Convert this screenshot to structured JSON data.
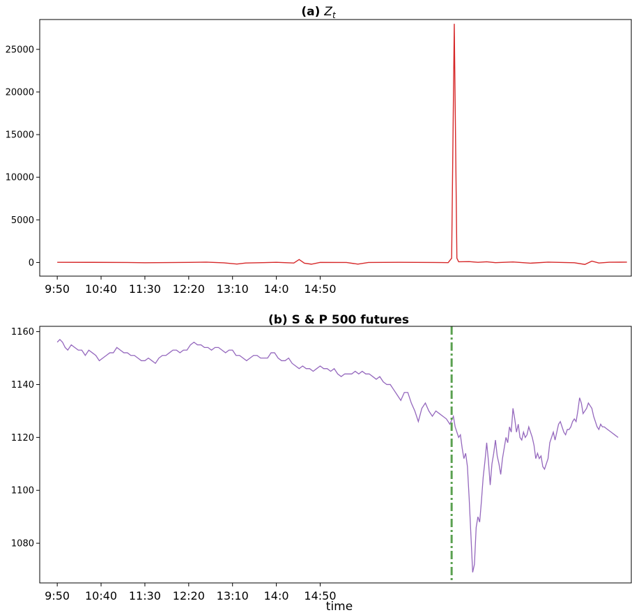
{
  "chart_data": [
    {
      "type": "line",
      "title_prefix": "(a)",
      "title_symbol": "Z",
      "title_subscript": "t",
      "xlabel": "",
      "ylabel": "",
      "x_unit": "minutes after 9:50",
      "xlim": [
        -20,
        655
      ],
      "ylim": [
        -1600,
        28500
      ],
      "yticks": [
        0,
        5000,
        10000,
        15000,
        20000,
        25000
      ],
      "xticks": [
        "9:50",
        "10:40",
        "11:30",
        "12:20",
        "13:10",
        "14:0",
        "14:50"
      ],
      "line_color": "#d62728",
      "series": [
        {
          "points": [
            [
              0,
              20
            ],
            [
              40,
              15
            ],
            [
              80,
              0
            ],
            [
              100,
              -30
            ],
            [
              150,
              10
            ],
            [
              170,
              40
            ],
            [
              190,
              -40
            ],
            [
              205,
              -180
            ],
            [
              215,
              -60
            ],
            [
              250,
              20
            ],
            [
              260,
              -20
            ],
            [
              270,
              -60
            ],
            [
              276,
              350
            ],
            [
              282,
              -80
            ],
            [
              290,
              -200
            ],
            [
              300,
              10
            ],
            [
              330,
              0
            ],
            [
              343,
              -190
            ],
            [
              355,
              0
            ],
            [
              390,
              20
            ],
            [
              430,
              0
            ],
            [
              446,
              -20
            ],
            [
              450,
              500
            ],
            [
              453,
              28000
            ],
            [
              456,
              500
            ],
            [
              458,
              80
            ],
            [
              470,
              100
            ],
            [
              480,
              20
            ],
            [
              490,
              80
            ],
            [
              500,
              -20
            ],
            [
              520,
              60
            ],
            [
              540,
              -80
            ],
            [
              560,
              40
            ],
            [
              590,
              -30
            ],
            [
              602,
              -230
            ],
            [
              610,
              160
            ],
            [
              618,
              -60
            ],
            [
              630,
              30
            ],
            [
              650,
              40
            ]
          ]
        }
      ]
    },
    {
      "type": "line",
      "title": "(b) S & P 500 futures",
      "xlabel": "time",
      "ylabel": "",
      "x_unit": "minutes after 9:50",
      "xlim": [
        -20,
        655
      ],
      "ylim": [
        1065,
        1162
      ],
      "yticks": [
        1080,
        1100,
        1120,
        1140,
        1160
      ],
      "xticks": [
        "9:50",
        "10:40",
        "11:30",
        "12:20",
        "13:10",
        "14:0",
        "14:50"
      ],
      "line_color": "#9467bd",
      "vline": {
        "x": 450,
        "color": "#5aa050",
        "style": "dash-dot"
      },
      "series": [
        {
          "points": [
            [
              0,
              1156
            ],
            [
              3,
              1157
            ],
            [
              6,
              1156
            ],
            [
              9,
              1154
            ],
            [
              12,
              1153
            ],
            [
              16,
              1155
            ],
            [
              20,
              1154
            ],
            [
              24,
              1153
            ],
            [
              28,
              1153
            ],
            [
              32,
              1151
            ],
            [
              36,
              1153
            ],
            [
              40,
              1152
            ],
            [
              44,
              1151
            ],
            [
              48,
              1149
            ],
            [
              52,
              1150
            ],
            [
              56,
              1151
            ],
            [
              60,
              1152
            ],
            [
              64,
              1152
            ],
            [
              68,
              1154
            ],
            [
              72,
              1153
            ],
            [
              76,
              1152
            ],
            [
              80,
              1152
            ],
            [
              84,
              1151
            ],
            [
              88,
              1151
            ],
            [
              92,
              1150
            ],
            [
              96,
              1149
            ],
            [
              100,
              1149
            ],
            [
              104,
              1150
            ],
            [
              108,
              1149
            ],
            [
              112,
              1148
            ],
            [
              116,
              1150
            ],
            [
              120,
              1151
            ],
            [
              124,
              1151
            ],
            [
              128,
              1152
            ],
            [
              132,
              1153
            ],
            [
              136,
              1153
            ],
            [
              140,
              1152
            ],
            [
              144,
              1153
            ],
            [
              148,
              1153
            ],
            [
              152,
              1155
            ],
            [
              156,
              1156
            ],
            [
              160,
              1155
            ],
            [
              164,
              1155
            ],
            [
              168,
              1154
            ],
            [
              172,
              1154
            ],
            [
              176,
              1153
            ],
            [
              180,
              1154
            ],
            [
              184,
              1154
            ],
            [
              188,
              1153
            ],
            [
              192,
              1152
            ],
            [
              196,
              1153
            ],
            [
              200,
              1153
            ],
            [
              204,
              1151
            ],
            [
              208,
              1151
            ],
            [
              212,
              1150
            ],
            [
              216,
              1149
            ],
            [
              220,
              1150
            ],
            [
              224,
              1151
            ],
            [
              228,
              1151
            ],
            [
              232,
              1150
            ],
            [
              236,
              1150
            ],
            [
              240,
              1150
            ],
            [
              244,
              1152
            ],
            [
              248,
              1152
            ],
            [
              252,
              1150
            ],
            [
              256,
              1149
            ],
            [
              260,
              1149
            ],
            [
              264,
              1150
            ],
            [
              268,
              1148
            ],
            [
              272,
              1147
            ],
            [
              276,
              1146
            ],
            [
              280,
              1147
            ],
            [
              284,
              1146
            ],
            [
              288,
              1146
            ],
            [
              292,
              1145
            ],
            [
              296,
              1146
            ],
            [
              300,
              1147
            ],
            [
              304,
              1146
            ],
            [
              308,
              1146
            ],
            [
              312,
              1145
            ],
            [
              316,
              1146
            ],
            [
              320,
              1144
            ],
            [
              324,
              1143
            ],
            [
              328,
              1144
            ],
            [
              332,
              1144
            ],
            [
              336,
              1144
            ],
            [
              340,
              1145
            ],
            [
              344,
              1144
            ],
            [
              348,
              1145
            ],
            [
              352,
              1144
            ],
            [
              356,
              1144
            ],
            [
              360,
              1143
            ],
            [
              364,
              1142
            ],
            [
              368,
              1143
            ],
            [
              372,
              1141
            ],
            [
              376,
              1140
            ],
            [
              380,
              1140
            ],
            [
              384,
              1138
            ],
            [
              388,
              1136
            ],
            [
              392,
              1134
            ],
            [
              396,
              1137
            ],
            [
              400,
              1137
            ],
            [
              404,
              1133
            ],
            [
              408,
              1130
            ],
            [
              412,
              1126
            ],
            [
              416,
              1131
            ],
            [
              420,
              1133
            ],
            [
              424,
              1130
            ],
            [
              428,
              1128
            ],
            [
              432,
              1130
            ],
            [
              436,
              1129
            ],
            [
              440,
              1128
            ],
            [
              444,
              1127
            ],
            [
              448,
              1125
            ],
            [
              452,
              1128
            ],
            [
              454,
              1124
            ],
            [
              456,
              1122
            ],
            [
              458,
              1120
            ],
            [
              460,
              1121
            ],
            [
              462,
              1116
            ],
            [
              464,
              1112
            ],
            [
              466,
              1114
            ],
            [
              468,
              1109
            ],
            [
              470,
              1097
            ],
            [
              472,
              1083
            ],
            [
              474,
              1069
            ],
            [
              476,
              1072
            ],
            [
              478,
              1086
            ],
            [
              480,
              1090
            ],
            [
              482,
              1088
            ],
            [
              484,
              1096
            ],
            [
              486,
              1105
            ],
            [
              488,
              1111
            ],
            [
              490,
              1118
            ],
            [
              492,
              1111
            ],
            [
              494,
              1102
            ],
            [
              496,
              1110
            ],
            [
              498,
              1114
            ],
            [
              500,
              1119
            ],
            [
              502,
              1113
            ],
            [
              504,
              1110
            ],
            [
              506,
              1106
            ],
            [
              508,
              1112
            ],
            [
              510,
              1116
            ],
            [
              512,
              1120
            ],
            [
              514,
              1118
            ],
            [
              516,
              1124
            ],
            [
              518,
              1122
            ],
            [
              520,
              1131
            ],
            [
              522,
              1127
            ],
            [
              524,
              1122
            ],
            [
              526,
              1125
            ],
            [
              528,
              1120
            ],
            [
              530,
              1119
            ],
            [
              532,
              1122
            ],
            [
              534,
              1120
            ],
            [
              536,
              1121
            ],
            [
              538,
              1124
            ],
            [
              540,
              1122
            ],
            [
              542,
              1120
            ],
            [
              544,
              1117
            ],
            [
              546,
              1112
            ],
            [
              548,
              1114
            ],
            [
              550,
              1112
            ],
            [
              552,
              1113
            ],
            [
              554,
              1109
            ],
            [
              556,
              1108
            ],
            [
              558,
              1110
            ],
            [
              560,
              1112
            ],
            [
              562,
              1118
            ],
            [
              564,
              1120
            ],
            [
              566,
              1122
            ],
            [
              568,
              1119
            ],
            [
              570,
              1122
            ],
            [
              572,
              1125
            ],
            [
              574,
              1126
            ],
            [
              576,
              1124
            ],
            [
              578,
              1122
            ],
            [
              580,
              1121
            ],
            [
              582,
              1123
            ],
            [
              584,
              1123
            ],
            [
              586,
              1124
            ],
            [
              588,
              1126
            ],
            [
              590,
              1127
            ],
            [
              592,
              1126
            ],
            [
              594,
              1130
            ],
            [
              596,
              1135
            ],
            [
              598,
              1133
            ],
            [
              600,
              1129
            ],
            [
              602,
              1130
            ],
            [
              604,
              1131
            ],
            [
              606,
              1133
            ],
            [
              608,
              1132
            ],
            [
              610,
              1131
            ],
            [
              612,
              1128
            ],
            [
              614,
              1126
            ],
            [
              616,
              1124
            ],
            [
              618,
              1123
            ],
            [
              620,
              1125
            ],
            [
              622,
              1124
            ],
            [
              624,
              1124
            ],
            [
              628,
              1123
            ],
            [
              632,
              1122
            ],
            [
              636,
              1121
            ],
            [
              640,
              1120
            ]
          ]
        }
      ]
    }
  ]
}
